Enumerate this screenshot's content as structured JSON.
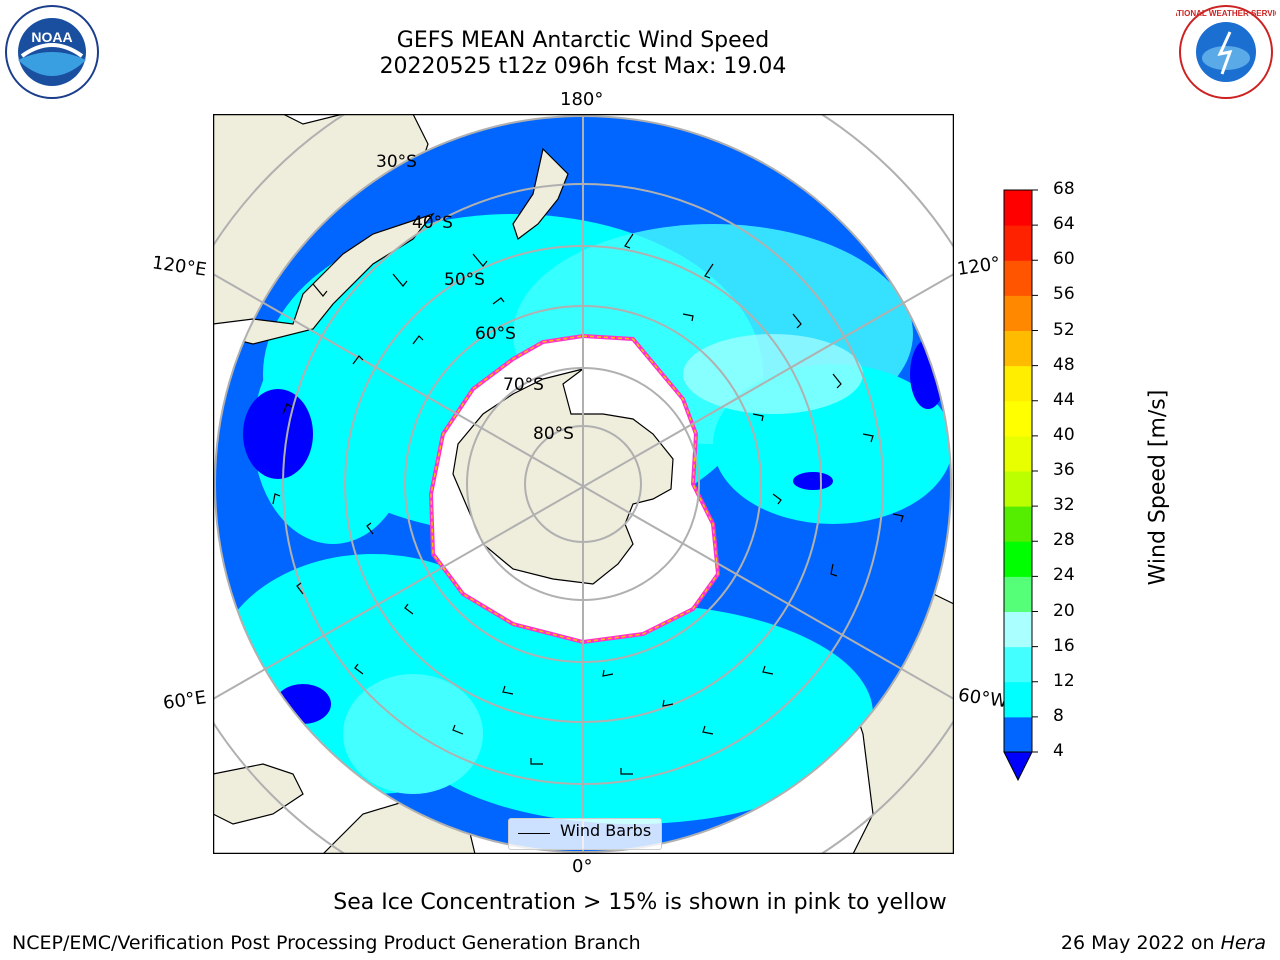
{
  "title_line1": "GEFS MEAN Antarctic Wind Speed",
  "title_line2": "20220525 t12z 096h fcst   Max: 19.04",
  "logos": {
    "left": "NOAA",
    "right": "NATIONAL WEATHER SERVICE"
  },
  "map": {
    "projection": "south-polar-stereographic",
    "lon_labels": {
      "top": "180°",
      "bottom": "0°",
      "left_upper": "120°E",
      "left_lower": "60°E",
      "right_upper": "120°",
      "right_lower": "60°W"
    },
    "lat_labels": [
      "30°S",
      "40°S",
      "50°S",
      "60°S",
      "70°S",
      "80°S"
    ],
    "legend": "Wind Barbs"
  },
  "colorbar": {
    "label": "Wind Speed [m/s]",
    "ticks": [
      "4",
      "8",
      "12",
      "16",
      "20",
      "24",
      "28",
      "32",
      "36",
      "40",
      "44",
      "48",
      "52",
      "56",
      "60",
      "64",
      "68"
    ],
    "colors": [
      "#0000ff",
      "#0066ff",
      "#00ffff",
      "#44ffff",
      "#aaffff",
      "#55ff77",
      "#00ff00",
      "#55ee00",
      "#bbff00",
      "#e8ff00",
      "#ffff00",
      "#ffee00",
      "#ffbb00",
      "#ff8800",
      "#ff5500",
      "#ff2200",
      "#ff0000"
    ]
  },
  "caption": "Sea Ice Concentration > 15% is shown in pink to yellow",
  "footer_left": "NCEP/EMC/Verification Post Processing Product Generation Branch",
  "footer_right_prefix": "26 May 2022 on ",
  "footer_right_host": "Hera"
}
